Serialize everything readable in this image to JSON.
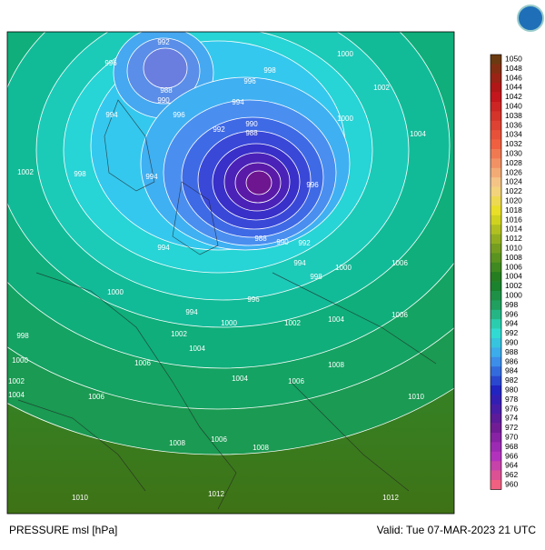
{
  "map": {
    "contour_labels": [
      992,
      996,
      988,
      990,
      994,
      996,
      998,
      1000,
      1002,
      1004,
      996,
      994,
      992,
      990,
      988,
      1000,
      1002,
      998,
      994,
      996,
      994,
      988,
      990,
      992,
      994,
      998,
      1000,
      1006,
      996,
      1000,
      994,
      1000,
      1002,
      1004,
      998,
      1000,
      1002,
      1004,
      1002,
      1004,
      1006,
      1006,
      1004,
      1006,
      1008,
      1006,
      1010,
      1008,
      1006,
      1008,
      1010,
      1012,
      1012
    ]
  },
  "colorbar": {
    "labels": [
      1050,
      1048,
      1046,
      1044,
      1042,
      1040,
      1038,
      1036,
      1034,
      1032,
      1030,
      1028,
      1026,
      1024,
      1022,
      1020,
      1018,
      1016,
      1014,
      1012,
      1010,
      1008,
      1006,
      1004,
      1002,
      1000,
      998,
      996,
      994,
      992,
      990,
      988,
      986,
      984,
      982,
      980,
      978,
      976,
      974,
      972,
      970,
      968,
      966,
      964,
      962,
      960
    ]
  },
  "footer": {
    "title": "PRESSURE msl [hPa]",
    "valid": "Valid: Tue 07-MAR-2023 21 UTC"
  }
}
